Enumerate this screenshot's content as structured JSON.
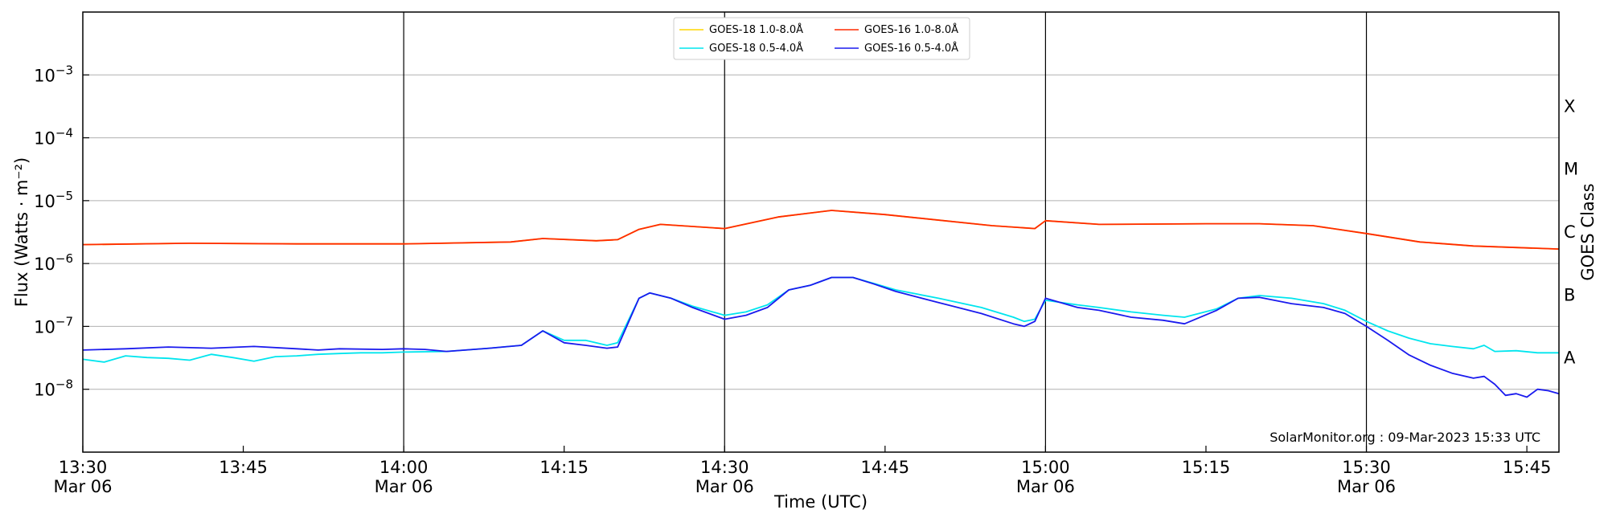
{
  "chart_data": {
    "type": "line",
    "xlabel": "Time (UTC)",
    "ylabel": "Flux (Watts · m⁻²)",
    "right_label": "GOES Class",
    "x_range": [
      "2023-03-06 13:30",
      "2023-03-06 15:48"
    ],
    "ylim": [
      1e-09,
      0.01
    ],
    "yscale": "log",
    "grid": "horizontal",
    "legend_position": "top-center",
    "watermark": "SolarMonitor.org : 09-Mar-2023 15:33 UTC",
    "x_ticks": [
      {
        "time": "13:30",
        "line1": "13:30",
        "line2": "Mar 06"
      },
      {
        "time": "13:45",
        "line1": "13:45",
        "line2": ""
      },
      {
        "time": "14:00",
        "line1": "14:00",
        "line2": "Mar 06"
      },
      {
        "time": "14:15",
        "line1": "14:15",
        "line2": ""
      },
      {
        "time": "14:30",
        "line1": "14:30",
        "line2": "Mar 06"
      },
      {
        "time": "14:45",
        "line1": "14:45",
        "line2": ""
      },
      {
        "time": "15:00",
        "line1": "15:00",
        "line2": "Mar 06"
      },
      {
        "time": "15:15",
        "line1": "15:15",
        "line2": ""
      },
      {
        "time": "15:30",
        "line1": "15:30",
        "line2": "Mar 06"
      },
      {
        "time": "15:45",
        "line1": "15:45",
        "line2": ""
      }
    ],
    "y_ticks": [
      {
        "value": 1e-08,
        "base": "10",
        "exp": "−8"
      },
      {
        "value": 1e-07,
        "base": "10",
        "exp": "−7"
      },
      {
        "value": 1e-06,
        "base": "10",
        "exp": "−6"
      },
      {
        "value": 1e-05,
        "base": "10",
        "exp": "−5"
      },
      {
        "value": 0.0001,
        "base": "10",
        "exp": "−4"
      },
      {
        "value": 0.001,
        "base": "10",
        "exp": "−3"
      }
    ],
    "goes_classes": [
      {
        "label": "A",
        "value": 3.16e-08
      },
      {
        "label": "B",
        "value": 3.16e-07
      },
      {
        "label": "C",
        "value": 3.16e-06
      },
      {
        "label": "M",
        "value": 3.16e-05
      },
      {
        "label": "X",
        "value": 0.000316
      }
    ],
    "vertical_lines": [
      "14:00",
      "14:30",
      "15:00",
      "15:30"
    ],
    "series": [
      {
        "name": "GOES-18 1.0-8.0Å",
        "color": "#ffd700",
        "x": [
          "13:30",
          "13:40",
          "13:50",
          "14:00",
          "14:10",
          "14:13",
          "14:18",
          "14:20",
          "14:22",
          "14:24",
          "14:30",
          "14:35",
          "14:40",
          "14:45",
          "14:55",
          "14:59",
          "15:00",
          "15:05",
          "15:15",
          "15:20",
          "15:25",
          "15:30",
          "15:35",
          "15:40",
          "15:48"
        ],
        "values": [
          2e-06,
          2.1e-06,
          2.05e-06,
          2.05e-06,
          2.2e-06,
          2.5e-06,
          2.3e-06,
          2.4e-06,
          3.5e-06,
          4.2e-06,
          3.6e-06,
          5.5e-06,
          7e-06,
          6e-06,
          4e-06,
          3.6e-06,
          4.8e-06,
          4.2e-06,
          4.3e-06,
          4.3e-06,
          4e-06,
          3e-06,
          2.2e-06,
          1.9e-06,
          1.7e-06
        ]
      },
      {
        "name": "GOES-18 0.5-4.0Å",
        "color": "#00e5ee",
        "x": [
          "13:30",
          "13:32",
          "13:34",
          "13:36",
          "13:38",
          "13:40",
          "13:42",
          "13:44",
          "13:46",
          "13:48",
          "13:50",
          "13:52",
          "13:54",
          "13:56",
          "13:58",
          "14:00",
          "14:04",
          "14:08",
          "14:11",
          "14:13",
          "14:15",
          "14:17",
          "14:19",
          "14:20",
          "14:22",
          "14:23",
          "14:25",
          "14:27",
          "14:30",
          "14:32",
          "14:34",
          "14:36",
          "14:38",
          "14:40",
          "14:42",
          "14:44",
          "14:46",
          "14:50",
          "14:54",
          "14:57",
          "14:58",
          "14:59",
          "15:00",
          "15:03",
          "15:05",
          "15:08",
          "15:11",
          "15:13",
          "15:16",
          "15:18",
          "15:20",
          "15:23",
          "15:26",
          "15:28",
          "15:30",
          "15:32",
          "15:34",
          "15:36",
          "15:38",
          "15:40",
          "15:41",
          "15:42",
          "15:44",
          "15:46",
          "15:48"
        ],
        "values": [
          3e-08,
          2.7e-08,
          3.4e-08,
          3.2e-08,
          3.1e-08,
          2.9e-08,
          3.6e-08,
          3.2e-08,
          2.8e-08,
          3.3e-08,
          3.4e-08,
          3.6e-08,
          3.7e-08,
          3.8e-08,
          3.8e-08,
          3.9e-08,
          4e-08,
          4.5e-08,
          5e-08,
          8.5e-08,
          6e-08,
          6e-08,
          5e-08,
          5.5e-08,
          2.8e-07,
          3.4e-07,
          2.8e-07,
          2.1e-07,
          1.5e-07,
          1.7e-07,
          2.2e-07,
          3.8e-07,
          4.5e-07,
          6e-07,
          6e-07,
          4.8e-07,
          3.8e-07,
          2.8e-07,
          2e-07,
          1.4e-07,
          1.2e-07,
          1.3e-07,
          2.6e-07,
          2.2e-07,
          2e-07,
          1.7e-07,
          1.5e-07,
          1.4e-07,
          1.9e-07,
          2.8e-07,
          3.1e-07,
          2.8e-07,
          2.3e-07,
          1.8e-07,
          1.2e-07,
          8.5e-08,
          6.5e-08,
          5.3e-08,
          4.8e-08,
          4.4e-08,
          5e-08,
          4e-08,
          4.1e-08,
          3.8e-08,
          3.8e-08
        ]
      },
      {
        "name": "GOES-16 1.0-8.0Å",
        "color": "#ff2a00",
        "x": [
          "13:30",
          "13:40",
          "13:50",
          "14:00",
          "14:10",
          "14:13",
          "14:18",
          "14:20",
          "14:22",
          "14:24",
          "14:30",
          "14:35",
          "14:40",
          "14:45",
          "14:55",
          "14:59",
          "15:00",
          "15:05",
          "15:15",
          "15:20",
          "15:25",
          "15:30",
          "15:35",
          "15:40",
          "15:48"
        ],
        "values": [
          2e-06,
          2.1e-06,
          2.05e-06,
          2.05e-06,
          2.2e-06,
          2.5e-06,
          2.3e-06,
          2.4e-06,
          3.5e-06,
          4.2e-06,
          3.6e-06,
          5.5e-06,
          7e-06,
          6e-06,
          4e-06,
          3.6e-06,
          4.8e-06,
          4.2e-06,
          4.3e-06,
          4.3e-06,
          4e-06,
          3e-06,
          2.2e-06,
          1.9e-06,
          1.7e-06
        ]
      },
      {
        "name": "GOES-16 0.5-4.0Å",
        "color": "#1a1aee",
        "x": [
          "13:30",
          "13:34",
          "13:38",
          "13:42",
          "13:46",
          "13:50",
          "13:52",
          "13:54",
          "13:58",
          "14:00",
          "14:02",
          "14:04",
          "14:08",
          "14:11",
          "14:13",
          "14:15",
          "14:17",
          "14:19",
          "14:20",
          "14:22",
          "14:23",
          "14:25",
          "14:27",
          "14:30",
          "14:32",
          "14:34",
          "14:36",
          "14:38",
          "14:40",
          "14:42",
          "14:44",
          "14:46",
          "14:50",
          "14:54",
          "14:57",
          "14:58",
          "14:59",
          "15:00",
          "15:03",
          "15:05",
          "15:08",
          "15:11",
          "15:13",
          "15:16",
          "15:18",
          "15:20",
          "15:23",
          "15:26",
          "15:28",
          "15:30",
          "15:32",
          "15:34",
          "15:36",
          "15:38",
          "15:40",
          "15:41",
          "15:42",
          "15:43",
          "15:44",
          "15:45",
          "15:46",
          "15:47",
          "15:48"
        ],
        "values": [
          4.2e-08,
          4.4e-08,
          4.7e-08,
          4.5e-08,
          4.8e-08,
          4.4e-08,
          4.2e-08,
          4.4e-08,
          4.3e-08,
          4.4e-08,
          4.3e-08,
          4e-08,
          4.5e-08,
          5e-08,
          8.5e-08,
          5.5e-08,
          5e-08,
          4.5e-08,
          4.7e-08,
          2.8e-07,
          3.4e-07,
          2.8e-07,
          2e-07,
          1.3e-07,
          1.5e-07,
          2e-07,
          3.8e-07,
          4.5e-07,
          6e-07,
          6e-07,
          4.7e-07,
          3.6e-07,
          2.4e-07,
          1.6e-07,
          1.1e-07,
          1e-07,
          1.2e-07,
          2.8e-07,
          2e-07,
          1.8e-07,
          1.4e-07,
          1.25e-07,
          1.1e-07,
          1.8e-07,
          2.8e-07,
          2.9e-07,
          2.3e-07,
          2e-07,
          1.6e-07,
          1e-07,
          6e-08,
          3.5e-08,
          2.4e-08,
          1.8e-08,
          1.5e-08,
          1.6e-08,
          1.2e-08,
          8e-09,
          8.5e-09,
          7.5e-09,
          1e-08,
          9.5e-09,
          8.5e-09
        ]
      }
    ]
  }
}
